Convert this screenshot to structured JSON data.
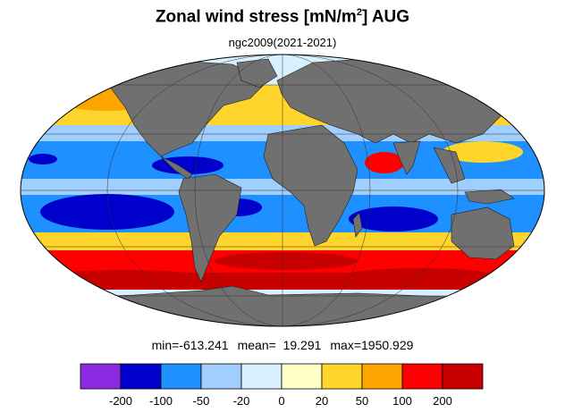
{
  "header": {
    "title_main": "Zonal wind stress [mN/m",
    "title_sup": "2",
    "title_end": "] AUG",
    "subtitle": "ngc2009(2021-2021)"
  },
  "stats": {
    "min": "min=-613.241",
    "mean": "mean=  19.291",
    "max": "max=1950.929"
  },
  "colorbar": {
    "tick_labels": [
      "-200",
      "-100",
      "-50",
      "-20",
      "0",
      "20",
      "50",
      "100",
      "200"
    ],
    "colors": [
      "#8a2be2",
      "#0000cd",
      "#1e90ff",
      "#a0cfff",
      "#d8f0ff",
      "#ffffc8",
      "#ffd52b",
      "#ffa500",
      "#ff0000",
      "#c80000"
    ]
  },
  "map": {
    "projection": "Mollweide",
    "land_color": "#707070",
    "grid": true
  }
}
